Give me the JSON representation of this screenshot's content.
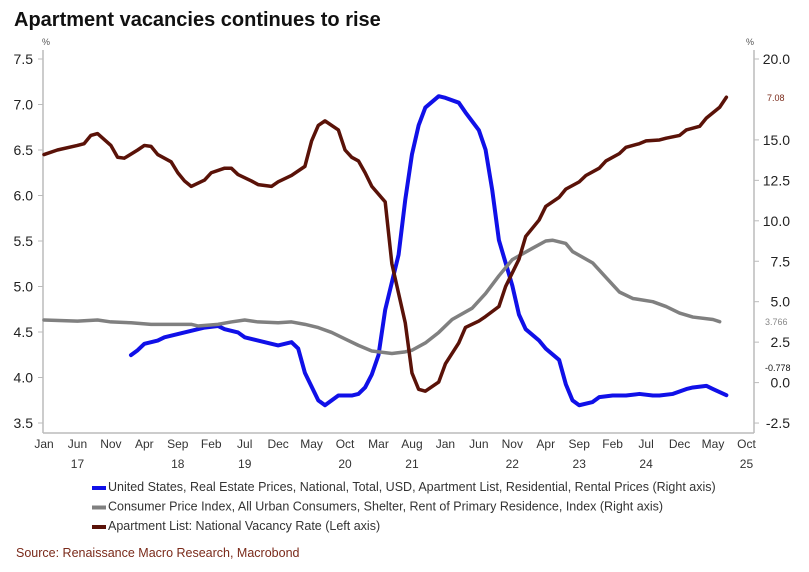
{
  "chart_data": {
    "type": "line",
    "title": "Apartment vacancies continues to rise",
    "source": "Source: Renaissance Macro Research, Macrobond",
    "left_axis": {
      "unit": "%",
      "ylim": [
        3.5,
        7.6
      ],
      "ticks": [
        "7.5",
        "7.0",
        "6.5",
        "6.0",
        "5.5",
        "5.0",
        "4.5",
        "4.0",
        "3.5"
      ]
    },
    "right_axis": {
      "unit": "%",
      "ylim": [
        -2.5,
        20.5
      ],
      "ticks": [
        "20.0",
        "15.0",
        "12.5",
        "10.0",
        "7.5",
        "5.0",
        "2.5",
        "0.0",
        "-2.5"
      ]
    },
    "x_ticks": [
      {
        "month": "Jan",
        "year": ""
      },
      {
        "month": "Jun",
        "year": "17"
      },
      {
        "month": "Nov",
        "year": ""
      },
      {
        "month": "Apr",
        "year": ""
      },
      {
        "month": "Sep",
        "year": "18"
      },
      {
        "month": "Feb",
        "year": ""
      },
      {
        "month": "Jul",
        "year": "19"
      },
      {
        "month": "Dec",
        "year": ""
      },
      {
        "month": "May",
        "year": ""
      },
      {
        "month": "Oct",
        "year": "20"
      },
      {
        "month": "Mar",
        "year": ""
      },
      {
        "month": "Aug",
        "year": "21"
      },
      {
        "month": "Jan",
        "year": ""
      },
      {
        "month": "Jun",
        "year": ""
      },
      {
        "month": "Nov",
        "year": "22"
      },
      {
        "month": "Apr",
        "year": ""
      },
      {
        "month": "Sep",
        "year": "23"
      },
      {
        "month": "Feb",
        "year": ""
      },
      {
        "month": "Jul",
        "year": "24"
      },
      {
        "month": "Dec",
        "year": ""
      },
      {
        "month": "May",
        "year": ""
      },
      {
        "month": "Oct",
        "year": "25"
      }
    ],
    "x_start": "2017-01",
    "grid": false,
    "legend_placement": "bottom",
    "series": [
      {
        "name": "United States, Real Estate Prices, National, Total, USD, Apartment List, Residential, Rental Prices (Right axis)",
        "axis": "right",
        "color": "#1010e8",
        "last_label": "-0.778",
        "last_label_color": "#111111",
        "points": [
          [
            "2018-02",
            1.7
          ],
          [
            "2018-03",
            2.0
          ],
          [
            "2018-04",
            2.4
          ],
          [
            "2018-06",
            2.6
          ],
          [
            "2018-07",
            2.8
          ],
          [
            "2018-09",
            3.0
          ],
          [
            "2018-10",
            3.1
          ],
          [
            "2018-12",
            3.3
          ],
          [
            "2019-01",
            3.4
          ],
          [
            "2019-03",
            3.5
          ],
          [
            "2019-04",
            3.3
          ],
          [
            "2019-06",
            3.1
          ],
          [
            "2019-07",
            2.8
          ],
          [
            "2019-09",
            2.6
          ],
          [
            "2019-10",
            2.5
          ],
          [
            "2019-12",
            2.3
          ],
          [
            "2020-01",
            2.4
          ],
          [
            "2020-02",
            2.5
          ],
          [
            "2020-03",
            2.1
          ],
          [
            "2020-04",
            0.6
          ],
          [
            "2020-06",
            -1.1
          ],
          [
            "2020-07",
            -1.4
          ],
          [
            "2020-08",
            -1.1
          ],
          [
            "2020-09",
            -0.8
          ],
          [
            "2020-11",
            -0.8
          ],
          [
            "2020-12",
            -0.7
          ],
          [
            "2021-01",
            -0.3
          ],
          [
            "2021-02",
            0.5
          ],
          [
            "2021-03",
            1.7
          ],
          [
            "2021-04",
            4.5
          ],
          [
            "2021-06",
            7.9
          ],
          [
            "2021-07",
            11.3
          ],
          [
            "2021-08",
            14.1
          ],
          [
            "2021-09",
            15.9
          ],
          [
            "2021-10",
            17.0
          ],
          [
            "2021-12",
            17.7
          ],
          [
            "2022-01",
            17.6
          ],
          [
            "2022-03",
            17.3
          ],
          [
            "2022-04",
            16.7
          ],
          [
            "2022-06",
            15.6
          ],
          [
            "2022-07",
            14.4
          ],
          [
            "2022-08",
            11.9
          ],
          [
            "2022-09",
            8.8
          ],
          [
            "2022-11",
            6.0
          ],
          [
            "2022-12",
            4.2
          ],
          [
            "2023-01",
            3.3
          ],
          [
            "2023-03",
            2.6
          ],
          [
            "2023-04",
            2.1
          ],
          [
            "2023-06",
            1.4
          ],
          [
            "2023-07",
            -0.1
          ],
          [
            "2023-08",
            -1.1
          ],
          [
            "2023-09",
            -1.4
          ],
          [
            "2023-11",
            -1.2
          ],
          [
            "2023-12",
            -0.9
          ],
          [
            "2024-02",
            -0.8
          ],
          [
            "2024-04",
            -0.8
          ],
          [
            "2024-06",
            -0.7
          ],
          [
            "2024-08",
            -0.8
          ],
          [
            "2024-09",
            -0.8
          ],
          [
            "2024-11",
            -0.7
          ],
          [
            "2025-01",
            -0.4
          ],
          [
            "2025-02",
            -0.3
          ],
          [
            "2025-04",
            -0.2
          ],
          [
            "2025-05",
            -0.4
          ],
          [
            "2025-07",
            -0.778
          ]
        ]
      },
      {
        "name": "Consumer Price Index, All Urban Consumers, Shelter, Rent of Primary Residence, Index (Right axis)",
        "axis": "right",
        "color": "#808080",
        "last_label": "3.766",
        "last_label_color": "#888888",
        "points": [
          [
            "2017-01",
            3.87
          ],
          [
            "2017-06",
            3.8
          ],
          [
            "2017-09",
            3.87
          ],
          [
            "2017-11",
            3.75
          ],
          [
            "2018-02",
            3.7
          ],
          [
            "2018-05",
            3.6
          ],
          [
            "2018-08",
            3.6
          ],
          [
            "2018-11",
            3.6
          ],
          [
            "2018-12",
            3.5
          ],
          [
            "2019-03",
            3.6
          ],
          [
            "2019-05",
            3.75
          ],
          [
            "2019-07",
            3.87
          ],
          [
            "2019-09",
            3.75
          ],
          [
            "2019-12",
            3.7
          ],
          [
            "2020-02",
            3.75
          ],
          [
            "2020-04",
            3.6
          ],
          [
            "2020-06",
            3.4
          ],
          [
            "2020-08",
            3.1
          ],
          [
            "2020-10",
            2.7
          ],
          [
            "2020-12",
            2.3
          ],
          [
            "2021-02",
            1.95
          ],
          [
            "2021-05",
            1.8
          ],
          [
            "2021-07",
            1.9
          ],
          [
            "2021-08",
            2.0
          ],
          [
            "2021-10",
            2.45
          ],
          [
            "2021-12",
            3.1
          ],
          [
            "2022-02",
            3.9
          ],
          [
            "2022-05",
            4.6
          ],
          [
            "2022-07",
            5.5
          ],
          [
            "2022-09",
            6.6
          ],
          [
            "2022-11",
            7.6
          ],
          [
            "2023-02",
            8.3
          ],
          [
            "2023-04",
            8.75
          ],
          [
            "2023-05",
            8.8
          ],
          [
            "2023-07",
            8.6
          ],
          [
            "2023-08",
            8.1
          ],
          [
            "2023-11",
            7.4
          ],
          [
            "2024-01",
            6.5
          ],
          [
            "2024-03",
            5.6
          ],
          [
            "2024-05",
            5.2
          ],
          [
            "2024-08",
            5.0
          ],
          [
            "2024-10",
            4.7
          ],
          [
            "2024-12",
            4.3
          ],
          [
            "2025-02",
            4.05
          ],
          [
            "2025-05",
            3.9
          ],
          [
            "2025-06",
            3.766
          ]
        ]
      },
      {
        "name": "Apartment List: National Vacancy Rate (Left axis)",
        "axis": "left",
        "color": "#5a1208",
        "last_label": "7.08",
        "last_label_color": "#7a2a1a",
        "points": [
          [
            "2017-01",
            6.45
          ],
          [
            "2017-03",
            6.5
          ],
          [
            "2017-06",
            6.55
          ],
          [
            "2017-07",
            6.57
          ],
          [
            "2017-08",
            6.66
          ],
          [
            "2017-09",
            6.68
          ],
          [
            "2017-11",
            6.55
          ],
          [
            "2017-12",
            6.42
          ],
          [
            "2018-01",
            6.41
          ],
          [
            "2018-03",
            6.5
          ],
          [
            "2018-04",
            6.55
          ],
          [
            "2018-05",
            6.54
          ],
          [
            "2018-06",
            6.45
          ],
          [
            "2018-08",
            6.37
          ],
          [
            "2018-09",
            6.25
          ],
          [
            "2018-10",
            6.16
          ],
          [
            "2018-11",
            6.1
          ],
          [
            "2019-01",
            6.17
          ],
          [
            "2019-02",
            6.25
          ],
          [
            "2019-04",
            6.3
          ],
          [
            "2019-05",
            6.3
          ],
          [
            "2019-06",
            6.23
          ],
          [
            "2019-08",
            6.16
          ],
          [
            "2019-09",
            6.12
          ],
          [
            "2019-11",
            6.1
          ],
          [
            "2019-12",
            6.15
          ],
          [
            "2020-02",
            6.22
          ],
          [
            "2020-04",
            6.32
          ],
          [
            "2020-05",
            6.6
          ],
          [
            "2020-06",
            6.77
          ],
          [
            "2020-07",
            6.82
          ],
          [
            "2020-09",
            6.72
          ],
          [
            "2020-10",
            6.5
          ],
          [
            "2020-11",
            6.42
          ],
          [
            "2020-12",
            6.38
          ],
          [
            "2021-01",
            6.25
          ],
          [
            "2021-02",
            6.1
          ],
          [
            "2021-04",
            5.93
          ],
          [
            "2021-05",
            5.25
          ],
          [
            "2021-07",
            4.6
          ],
          [
            "2021-08",
            4.05
          ],
          [
            "2021-09",
            3.87
          ],
          [
            "2021-10",
            3.85
          ],
          [
            "2021-12",
            3.95
          ],
          [
            "2022-01",
            4.15
          ],
          [
            "2022-03",
            4.38
          ],
          [
            "2022-04",
            4.55
          ],
          [
            "2022-06",
            4.62
          ],
          [
            "2022-07",
            4.67
          ],
          [
            "2022-09",
            4.78
          ],
          [
            "2022-10",
            5.0
          ],
          [
            "2022-12",
            5.3
          ],
          [
            "2023-01",
            5.55
          ],
          [
            "2023-03",
            5.73
          ],
          [
            "2023-04",
            5.88
          ],
          [
            "2023-06",
            5.98
          ],
          [
            "2023-07",
            6.07
          ],
          [
            "2023-09",
            6.15
          ],
          [
            "2023-10",
            6.22
          ],
          [
            "2023-12",
            6.3
          ],
          [
            "2024-01",
            6.38
          ],
          [
            "2024-03",
            6.46
          ],
          [
            "2024-04",
            6.53
          ],
          [
            "2024-06",
            6.57
          ],
          [
            "2024-07",
            6.6
          ],
          [
            "2024-09",
            6.61
          ],
          [
            "2024-10",
            6.63
          ],
          [
            "2024-12",
            6.66
          ],
          [
            "2025-01",
            6.72
          ],
          [
            "2025-03",
            6.76
          ],
          [
            "2025-04",
            6.85
          ],
          [
            "2025-06",
            6.97
          ],
          [
            "2025-07",
            7.08
          ]
        ]
      }
    ]
  }
}
